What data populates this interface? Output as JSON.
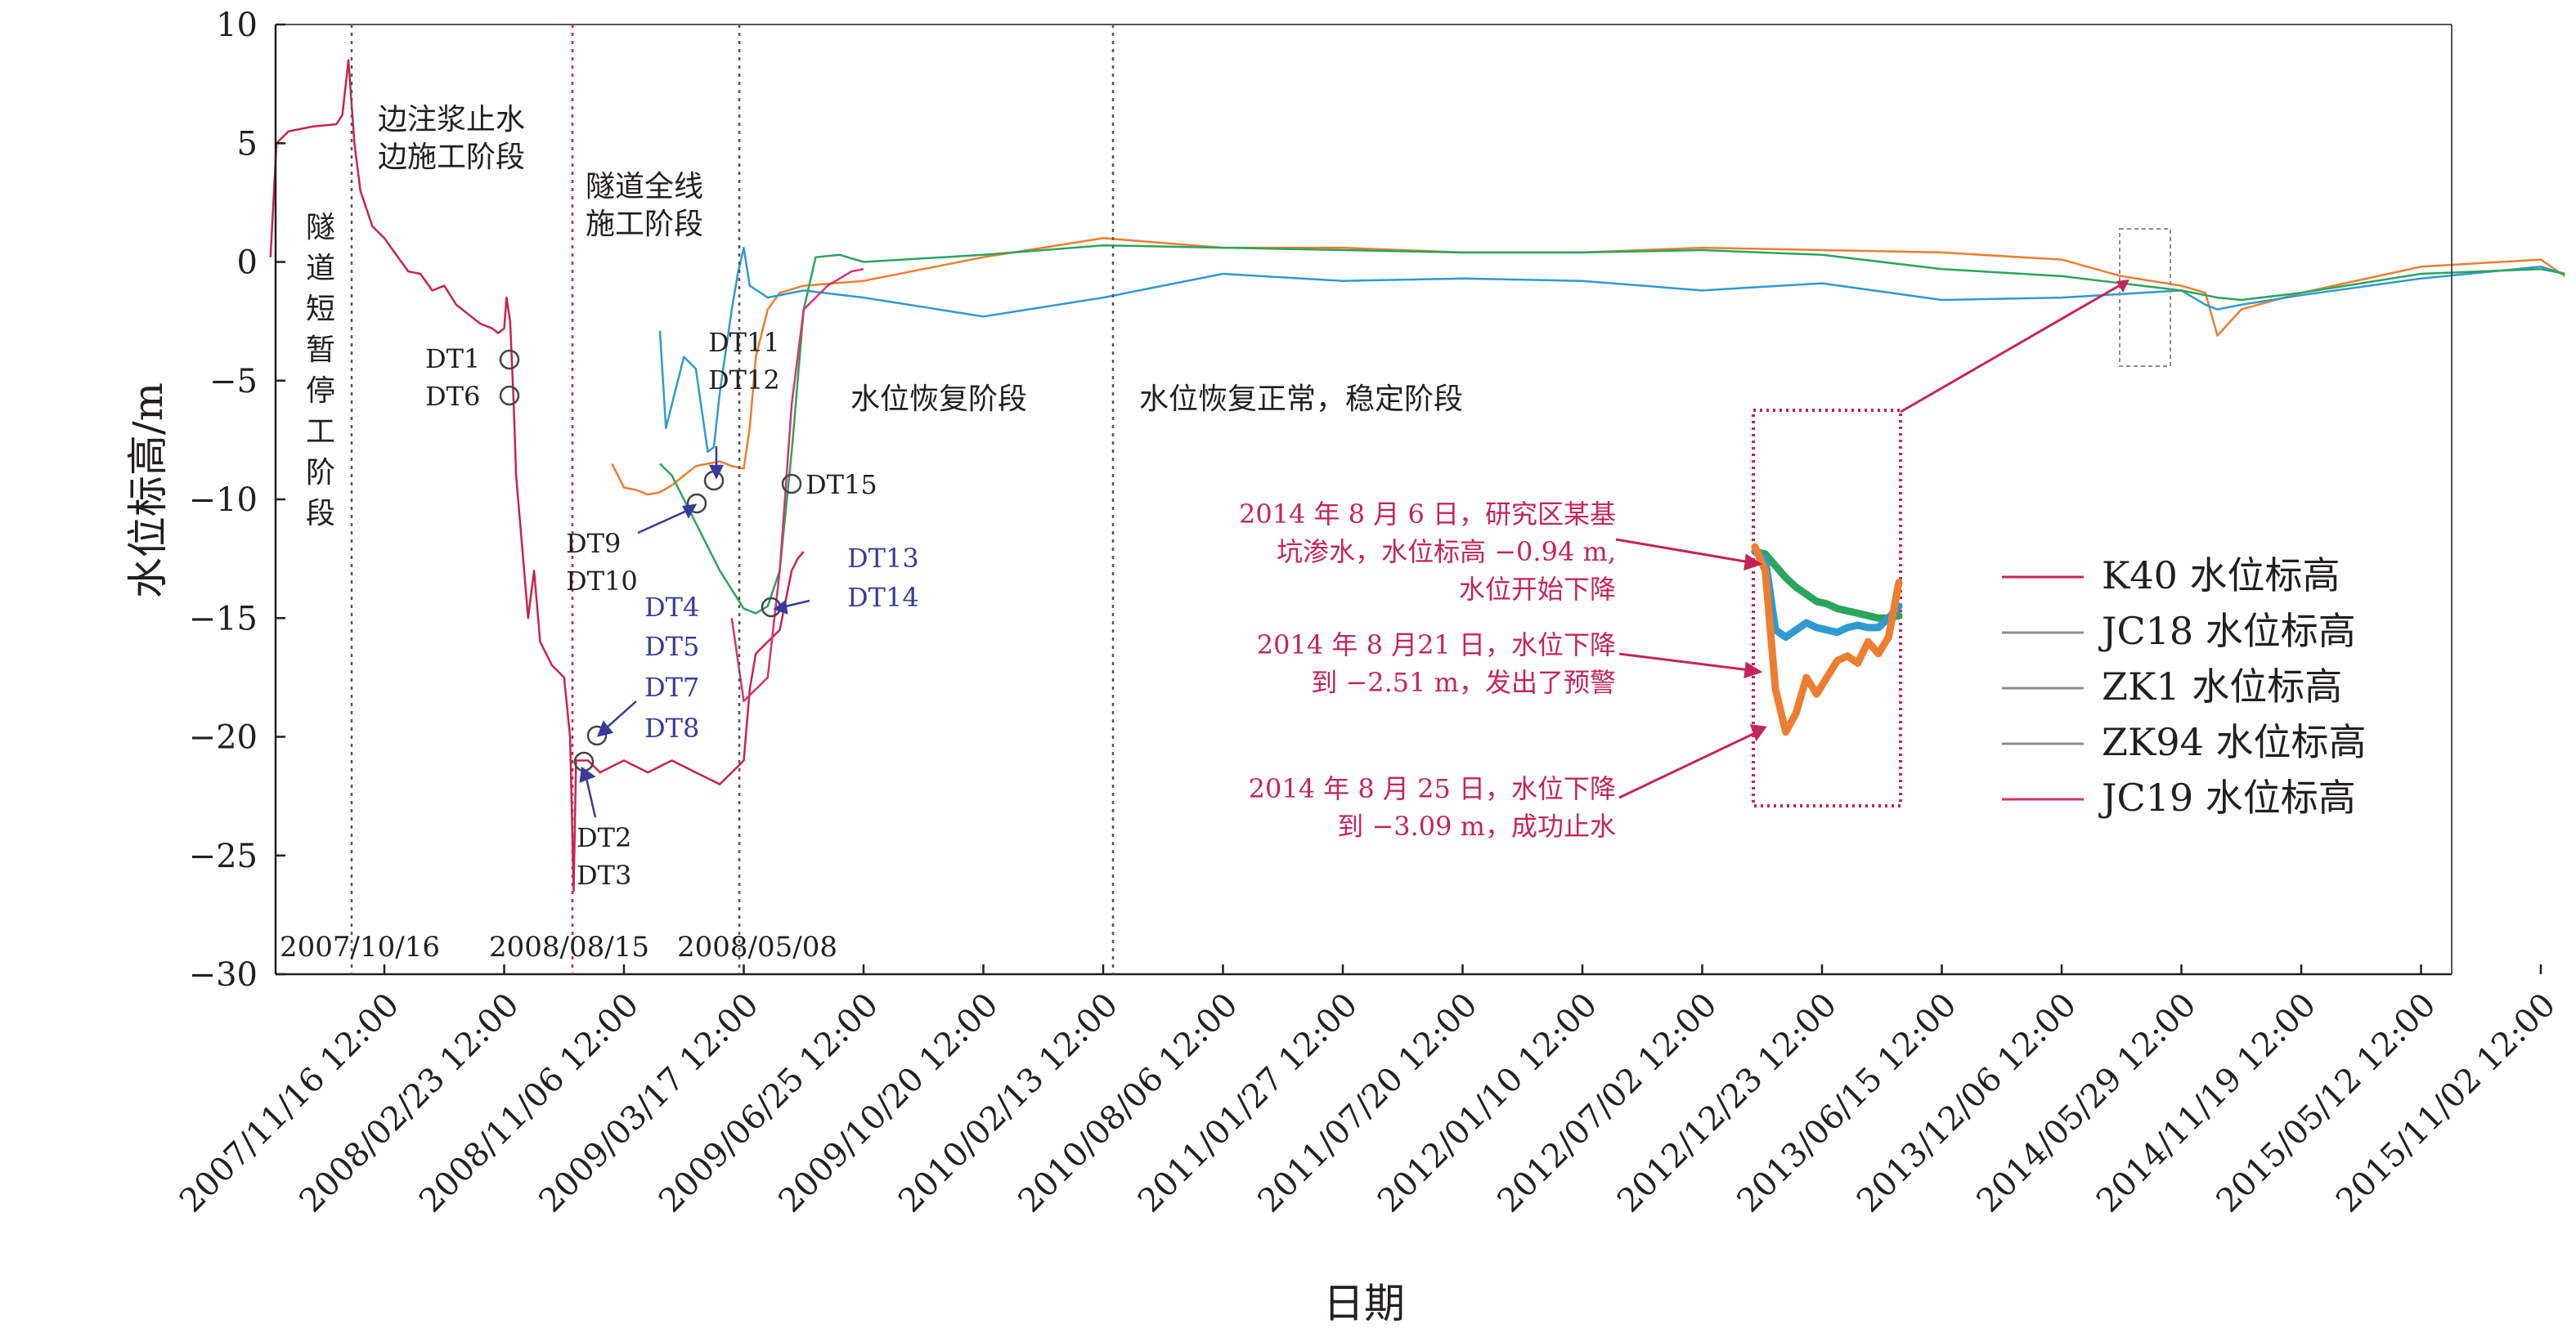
{
  "colors": {
    "K40": "#c8234f",
    "JC18": "#ed7d31",
    "ZK1": "#2f9ad0",
    "ZK94": "#2ba55c",
    "JC19": "#d6336c",
    "grey": "#8c8c8c",
    "annotation": "#c5245a",
    "dt_text": "#3a3a9a"
  },
  "chart_data": {
    "type": "line",
    "xlabel": "日期",
    "ylabel": "水位标高/m",
    "ylim": [
      -30,
      10
    ],
    "yticks": [
      "10",
      "5",
      "0",
      "−5",
      "−10",
      "−15",
      "−20",
      "−25",
      "−30"
    ],
    "xticks": [
      "2007/11/16 12:00",
      "2008/02/23 12:00",
      "2008/11/06 12:00",
      "2009/03/17 12:00",
      "2009/06/25 12:00",
      "2009/10/20 12:00",
      "2010/02/13 12:00",
      "2010/08/06 12:00",
      "2011/01/27 12:00",
      "2011/07/20 12:00",
      "2012/01/10 12:00",
      "2012/07/02 12:00",
      "2012/12/23 12:00",
      "2013/06/15 12:00",
      "2013/12/06 12:00",
      "2014/05/29 12:00",
      "2014/11/19 12:00",
      "2015/05/12 12:00",
      "2015/11/02 12:00"
    ],
    "x_unit": "tick index (0 = 2007/11/16 12:00, 18 = 2015/11/02 12:00)",
    "series": [
      {
        "name": "K40 水位标高",
        "points": [
          [
            -0.95,
            0.2
          ],
          [
            -0.9,
            5.0
          ],
          [
            -0.8,
            5.5
          ],
          [
            -0.6,
            5.7
          ],
          [
            -0.4,
            5.8
          ],
          [
            -0.35,
            6.2
          ],
          [
            -0.3,
            8.5
          ],
          [
            -0.25,
            5.0
          ],
          [
            -0.2,
            3.0
          ],
          [
            -0.1,
            1.5
          ],
          [
            0.0,
            1.0
          ],
          [
            0.1,
            0.3
          ],
          [
            0.2,
            -0.4
          ],
          [
            0.3,
            -0.5
          ],
          [
            0.4,
            -1.2
          ],
          [
            0.5,
            -1.0
          ],
          [
            0.6,
            -1.8
          ],
          [
            0.7,
            -2.2
          ],
          [
            0.8,
            -2.6
          ],
          [
            0.9,
            -2.8
          ],
          [
            0.95,
            -3.0
          ],
          [
            1.0,
            -2.8
          ],
          [
            1.02,
            -1.5
          ],
          [
            1.05,
            -2.5
          ],
          [
            1.08,
            -6.0
          ],
          [
            1.1,
            -9.0
          ],
          [
            1.15,
            -12.0
          ],
          [
            1.2,
            -15.0
          ],
          [
            1.25,
            -13.0
          ],
          [
            1.3,
            -16.0
          ],
          [
            1.4,
            -17.0
          ],
          [
            1.5,
            -17.5
          ],
          [
            1.55,
            -20.0
          ],
          [
            1.58,
            -26.5
          ],
          [
            1.6,
            -21.0
          ],
          [
            1.7,
            -21.0
          ],
          [
            1.8,
            -21.5
          ],
          [
            2.0,
            -21.0
          ],
          [
            2.2,
            -21.5
          ],
          [
            2.4,
            -21.0
          ],
          [
            2.6,
            -21.5
          ],
          [
            2.8,
            -22.0
          ],
          [
            2.9,
            -21.5
          ],
          [
            3.0,
            -21.0
          ],
          [
            3.05,
            -18.0
          ],
          [
            3.1,
            -16.5
          ],
          [
            3.2,
            -16.0
          ],
          [
            3.3,
            -15.5
          ],
          [
            3.4,
            -13.0
          ],
          [
            3.45,
            -12.5
          ],
          [
            3.5,
            -12.2
          ]
        ]
      },
      {
        "name": "JC18 水位标高",
        "points": [
          [
            1.9,
            -8.5
          ],
          [
            2.0,
            -9.5
          ],
          [
            2.1,
            -9.6
          ],
          [
            2.2,
            -9.8
          ],
          [
            2.3,
            -9.7
          ],
          [
            2.4,
            -9.4
          ],
          [
            2.5,
            -9.0
          ],
          [
            2.6,
            -8.6
          ],
          [
            2.7,
            -8.5
          ],
          [
            2.8,
            -8.4
          ],
          [
            2.9,
            -8.6
          ],
          [
            3.0,
            -8.7
          ],
          [
            3.05,
            -7.0
          ],
          [
            3.1,
            -4.0
          ],
          [
            3.2,
            -2.0
          ],
          [
            3.3,
            -1.3
          ],
          [
            3.5,
            -1.0
          ],
          [
            4.0,
            -0.8
          ],
          [
            5.0,
            0.2
          ],
          [
            6.0,
            1.0
          ],
          [
            7.0,
            0.6
          ],
          [
            8.0,
            0.6
          ],
          [
            9.0,
            0.4
          ],
          [
            10.0,
            0.4
          ],
          [
            11.0,
            0.6
          ],
          [
            12.0,
            0.5
          ],
          [
            13.0,
            0.4
          ],
          [
            14.0,
            0.1
          ],
          [
            14.5,
            -0.6
          ],
          [
            15.0,
            -1.0
          ],
          [
            15.2,
            -1.3
          ],
          [
            15.3,
            -3.1
          ],
          [
            15.5,
            -2.0
          ],
          [
            16.0,
            -1.3
          ],
          [
            17.0,
            -0.2
          ],
          [
            18.0,
            0.1
          ],
          [
            18.2,
            -0.6
          ]
        ]
      },
      {
        "name": "ZK1 水位标高",
        "points": [
          [
            2.3,
            -2.9
          ],
          [
            2.35,
            -7.0
          ],
          [
            2.4,
            -6.0
          ],
          [
            2.5,
            -4.0
          ],
          [
            2.6,
            -4.5
          ],
          [
            2.7,
            -8.0
          ],
          [
            2.75,
            -7.8
          ],
          [
            2.8,
            -5.5
          ],
          [
            2.9,
            -2.0
          ],
          [
            2.95,
            -0.5
          ],
          [
            3.0,
            0.6
          ],
          [
            3.05,
            -1.0
          ],
          [
            3.2,
            -1.5
          ],
          [
            3.5,
            -1.2
          ],
          [
            4.0,
            -1.5
          ],
          [
            5.0,
            -2.3
          ],
          [
            6.0,
            -1.5
          ],
          [
            7.0,
            -0.5
          ],
          [
            8.0,
            -0.8
          ],
          [
            9.0,
            -0.7
          ],
          [
            10.0,
            -0.8
          ],
          [
            11.0,
            -1.2
          ],
          [
            12.0,
            -0.9
          ],
          [
            13.0,
            -1.6
          ],
          [
            14.0,
            -1.5
          ],
          [
            15.0,
            -1.2
          ],
          [
            15.2,
            -1.8
          ],
          [
            15.3,
            -2.0
          ],
          [
            15.5,
            -1.8
          ],
          [
            16.0,
            -1.4
          ],
          [
            17.0,
            -0.7
          ],
          [
            18.0,
            -0.2
          ],
          [
            18.2,
            -0.5
          ]
        ]
      },
      {
        "name": "ZK94 水位标高",
        "points": [
          [
            2.3,
            -8.5
          ],
          [
            2.4,
            -9.0
          ],
          [
            2.5,
            -10.0
          ],
          [
            2.6,
            -11.0
          ],
          [
            2.7,
            -12.0
          ],
          [
            2.8,
            -13.0
          ],
          [
            2.9,
            -13.8
          ],
          [
            3.0,
            -14.6
          ],
          [
            3.1,
            -14.8
          ],
          [
            3.2,
            -14.5
          ],
          [
            3.3,
            -13.0
          ],
          [
            3.4,
            -8.0
          ],
          [
            3.5,
            -2.0
          ],
          [
            3.6,
            0.2
          ],
          [
            3.8,
            0.3
          ],
          [
            4.0,
            0.0
          ],
          [
            5.0,
            0.3
          ],
          [
            6.0,
            0.7
          ],
          [
            7.0,
            0.6
          ],
          [
            8.0,
            0.5
          ],
          [
            9.0,
            0.4
          ],
          [
            10.0,
            0.4
          ],
          [
            11.0,
            0.5
          ],
          [
            12.0,
            0.3
          ],
          [
            13.0,
            -0.3
          ],
          [
            14.0,
            -0.6
          ],
          [
            15.0,
            -1.2
          ],
          [
            15.3,
            -1.5
          ],
          [
            15.5,
            -1.6
          ],
          [
            16.0,
            -1.3
          ],
          [
            17.0,
            -0.5
          ],
          [
            18.0,
            -0.3
          ],
          [
            18.2,
            -0.5
          ]
        ]
      },
      {
        "name": "JC19 水位标高",
        "points": [
          [
            2.9,
            -15.0
          ],
          [
            3.0,
            -18.5
          ],
          [
            3.1,
            -18.0
          ],
          [
            3.2,
            -17.5
          ],
          [
            3.3,
            -13.0
          ],
          [
            3.4,
            -6.0
          ],
          [
            3.5,
            -2.0
          ],
          [
            3.6,
            -1.5
          ],
          [
            3.7,
            -1.0
          ],
          [
            3.8,
            -0.7
          ],
          [
            3.9,
            -0.4
          ],
          [
            4.0,
            -0.3
          ]
        ]
      }
    ],
    "inset_series": [
      {
        "name": "ZK94",
        "values": [
          -12.2,
          -12.3,
          -12.8,
          -13.3,
          -13.7,
          -14.0,
          -14.3,
          -14.4,
          -14.6,
          -14.7,
          -14.8,
          -14.9,
          -15.0,
          -15.0,
          -14.9
        ]
      },
      {
        "name": "ZK1",
        "values": [
          -12.2,
          -12.5,
          -15.5,
          -15.8,
          -15.5,
          -15.2,
          -15.4,
          -15.5,
          -15.6,
          -15.4,
          -15.3,
          -15.4,
          -15.4,
          -15.0,
          -14.5
        ]
      },
      {
        "name": "JC18",
        "values": [
          -12.0,
          -13.0,
          -18.0,
          -19.8,
          -19.0,
          -17.5,
          -18.2,
          -17.5,
          -16.8,
          -16.6,
          -16.9,
          -16.0,
          -16.5,
          -15.8,
          -13.5
        ]
      }
    ]
  },
  "legend": [
    {
      "label": "K40 水位标高",
      "key": "K40"
    },
    {
      "label": "JC18 水位标高",
      "key": "grey"
    },
    {
      "label": "ZK1 水位标高",
      "key": "grey"
    },
    {
      "label": "ZK94 水位标高",
      "key": "grey"
    },
    {
      "label": "JC19 水位标高",
      "key": "JC19"
    }
  ],
  "phases": {
    "p1": [
      "隧",
      "道",
      "短",
      "暂",
      "停",
      "工",
      "阶",
      "段"
    ],
    "p2_line1": "边注浆止水",
    "p2_line2": "边施工阶段",
    "p3_line1": "隧道全线",
    "p3_line2": "施工阶段",
    "p4": "水位恢复阶段",
    "p5": "水位恢复正常，稳定阶段"
  },
  "divider_dates": [
    "2007/10/16",
    "2008/08/15",
    "2008/05/08"
  ],
  "dt_labels": {
    "dt1": "DT1",
    "dt6": "DT6",
    "dt11": "DT11",
    "dt12": "DT12",
    "dt9": "DT9",
    "dt10": "DT10",
    "dt15": "DT15",
    "dt13": "DT13",
    "dt14": "DT14",
    "dt4": "DT4",
    "dt5": "DT5",
    "dt7": "DT7",
    "dt8": "DT8",
    "dt2": "DT2",
    "dt3": "DT3"
  },
  "notes": {
    "n1_line1": "2014 年 8 月 6 日，研究区某基",
    "n1_line2": "坑渗水，水位标高 −0.94 m,",
    "n1_line3": "水位开始下降",
    "n2_line1": "2014 年 8 月21 日，水位下降",
    "n2_line2": "到 −2.51 m，发出了预警",
    "n3_line1": "2014 年 8 月 25 日，水位下降",
    "n3_line2": "到 −3.09 m，成功止水"
  }
}
